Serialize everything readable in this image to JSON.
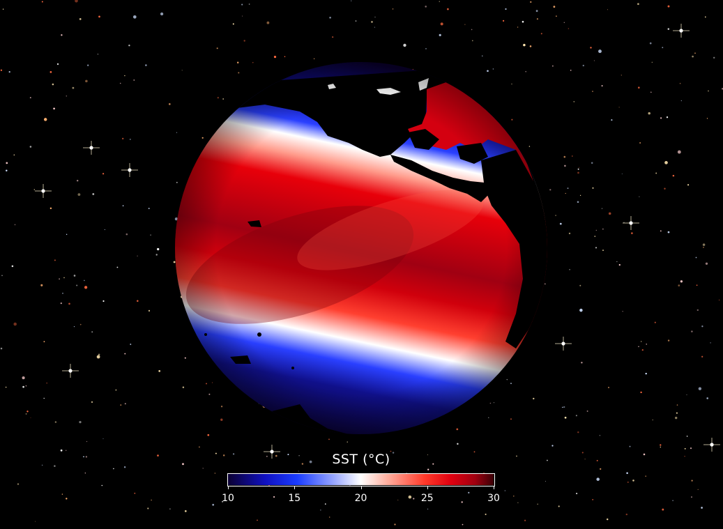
{
  "map": {
    "projection": "orthographic globe",
    "variable": "sea surface temperature",
    "background": "starfield"
  },
  "colorbar": {
    "title": "SST (°C)",
    "min": 10,
    "max": 30,
    "ticks": [
      "10",
      "15",
      "20",
      "25",
      "30"
    ],
    "colormap": [
      "#0b0033",
      "#1010c0",
      "#1a3cff",
      "#9aa8ff",
      "#ffffff",
      "#ffb0a0",
      "#ff3a2a",
      "#e00010",
      "#a00010",
      "#3a0006"
    ]
  },
  "colors": {
    "cold": "#0a0030",
    "neutral": "#ffffff",
    "warm": "#e00010",
    "land": "#000000"
  }
}
